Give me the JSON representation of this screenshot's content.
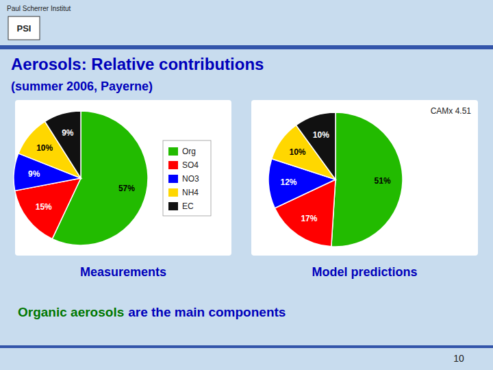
{
  "title": "Aerosols: Relative contributions",
  "subtitle": "(summer 2006, Payerne)",
  "annotations": [
    "Paul Scherrer Institut",
    "PSI",
    "Organic aerosols",
    "are the main components",
    "10"
  ],
  "chart_data": [
    {
      "type": "pie",
      "title": "Measurements",
      "categories": [
        "Org",
        "SO4",
        "NO3",
        "NH4",
        "EC"
      ],
      "values": [
        57,
        15,
        9,
        10,
        9
      ],
      "value_labels": [
        "57%",
        "15%",
        "9%",
        "10%",
        "9%"
      ],
      "colors": [
        "#22BB00",
        "#FF0000",
        "#0000FF",
        "#FFD700",
        "#111111"
      ],
      "data_labels": true,
      "legend": "right"
    },
    {
      "type": "pie",
      "title": "Model predictions",
      "categories": [
        "Org",
        "SO4",
        "NO3",
        "NH4",
        "EC"
      ],
      "values": [
        51,
        17,
        12,
        10,
        10
      ],
      "value_labels": [
        "51%",
        "17%",
        "12%",
        "10%",
        "10%"
      ],
      "colors": [
        "#22BB00",
        "#FF0000",
        "#0000FF",
        "#FFD700",
        "#111111"
      ],
      "data_labels": true,
      "annotations": [
        "CAMx 4.51"
      ]
    }
  ]
}
